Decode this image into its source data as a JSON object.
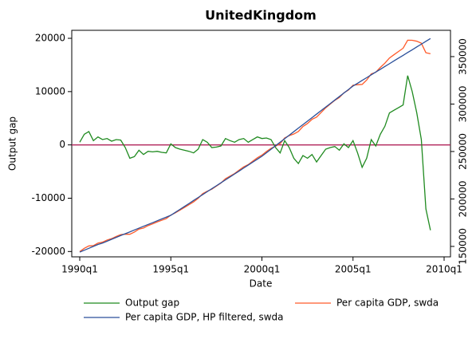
{
  "chart_data": {
    "type": "line",
    "title": "UnitedKingdom",
    "x_label": "Date",
    "y_label": "Output gap",
    "x": [
      "1990q1",
      "1990q2",
      "1990q3",
      "1990q4",
      "1991q1",
      "1991q2",
      "1991q3",
      "1991q4",
      "1992q1",
      "1992q2",
      "1992q3",
      "1992q4",
      "1993q1",
      "1993q2",
      "1993q3",
      "1993q4",
      "1994q1",
      "1994q2",
      "1994q3",
      "1994q4",
      "1995q1",
      "1995q2",
      "1995q3",
      "1995q4",
      "1996q1",
      "1996q2",
      "1996q3",
      "1996q4",
      "1997q1",
      "1997q2",
      "1997q3",
      "1997q4",
      "1998q1",
      "1998q2",
      "1998q3",
      "1998q4",
      "1999q1",
      "1999q2",
      "1999q3",
      "1999q4",
      "2000q1",
      "2000q2",
      "2000q3",
      "2000q4",
      "2001q1",
      "2001q2",
      "2001q3",
      "2001q4",
      "2002q1",
      "2002q2",
      "2002q3",
      "2002q4",
      "2003q1",
      "2003q2",
      "2003q3",
      "2003q4",
      "2004q1",
      "2004q2",
      "2004q3",
      "2004q4",
      "2005q1",
      "2005q2",
      "2005q3",
      "2005q4",
      "2006q1",
      "2006q2",
      "2006q3",
      "2006q4",
      "2007q1",
      "2007q2",
      "2007q3",
      "2007q4",
      "2008q1",
      "2008q2",
      "2008q3",
      "2008q4",
      "2009q1",
      "2009q2"
    ],
    "series": [
      {
        "name": "Output gap",
        "color": "#1f8a1f",
        "values": [
          500,
          2000,
          2500,
          800,
          1500,
          1000,
          1200,
          700,
          1000,
          900,
          -500,
          -2500,
          -2200,
          -1000,
          -1800,
          -1200,
          -1300,
          -1200,
          -1400,
          -1500,
          200,
          -500,
          -800,
          -1000,
          -1200,
          -1500,
          -800,
          1000,
          500,
          -500,
          -400,
          -200,
          1200,
          800,
          500,
          1000,
          1200,
          500,
          1000,
          1500,
          1200,
          1300,
          1000,
          -500,
          -1500,
          800,
          -500,
          -2500,
          -3500,
          -2000,
          -2500,
          -1800,
          -3200,
          -2000,
          -800,
          -500,
          -300,
          -1000,
          200,
          -500,
          800,
          -1500,
          -4200,
          -2500,
          1000,
          -200,
          2000,
          3500,
          6000,
          6500,
          7000,
          7500,
          13000,
          10000,
          6000,
          1000,
          -12000,
          -16000
        ]
      },
      {
        "name": "Per capita GDP, swda",
        "color": "#ff5a2a",
        "axis": "y2",
        "values": [
          144500,
          148000,
          150500,
          150800,
          153500,
          154500,
          156700,
          158200,
          160500,
          162400,
          162900,
          162800,
          165100,
          168200,
          169400,
          171900,
          173700,
          175800,
          177500,
          179300,
          183000,
          185400,
          188200,
          191100,
          194000,
          196900,
          200700,
          205600,
          208200,
          210300,
          213500,
          216800,
          221300,
          224000,
          226800,
          230400,
          233800,
          236200,
          239800,
          243400,
          246200,
          250000,
          253400,
          255600,
          258300,
          264300,
          266700,
          268400,
          271100,
          276300,
          279500,
          283900,
          286200,
          291100,
          296000,
          300000,
          303900,
          306900,
          311800,
          314800,
          319800,
          320400,
          320700,
          325300,
          331800,
          333500,
          338600,
          343100,
          348500,
          352000,
          355400,
          358800,
          367300,
          367200,
          366200,
          364100,
          354100,
          353000
        ]
      },
      {
        "name": "Per capita GDP, HP filtered, swda",
        "color": "#2a4f9a",
        "axis": "y2",
        "values": [
          144000,
          146000,
          148000,
          150000,
          152000,
          153500,
          155500,
          157500,
          159500,
          161500,
          163400,
          165300,
          167300,
          169200,
          171200,
          173100,
          175000,
          177000,
          178900,
          180800,
          182800,
          185900,
          189000,
          192100,
          195200,
          198400,
          201500,
          204600,
          207700,
          210800,
          213900,
          217000,
          220100,
          223200,
          226300,
          229400,
          232600,
          235700,
          238800,
          241900,
          245000,
          248700,
          252400,
          256100,
          259800,
          263500,
          267200,
          270900,
          274600,
          278300,
          282000,
          285700,
          289400,
          293100,
          296800,
          300500,
          304200,
          307900,
          311600,
          315300,
          319000,
          321900,
          324900,
          327800,
          330800,
          333700,
          336600,
          339600,
          342500,
          345500,
          348400,
          351300,
          354300,
          357200,
          360200,
          363100,
          366100,
          369000
        ]
      }
    ],
    "xlim": [
      "1990q1",
      "2010q1"
    ],
    "xticks": [
      "1990q1",
      "1995q1",
      "2000q1",
      "2005q1",
      "2010q1"
    ],
    "ylim": [
      -21000,
      21500
    ],
    "yticks": [
      -20000,
      -10000,
      0,
      10000,
      20000
    ],
    "y2lim": [
      139000,
      377700
    ],
    "y2ticks": [
      150000,
      200000,
      250000,
      300000,
      350000
    ],
    "hline": 0,
    "hline_color": "#b0245a",
    "legend": "bottom"
  }
}
